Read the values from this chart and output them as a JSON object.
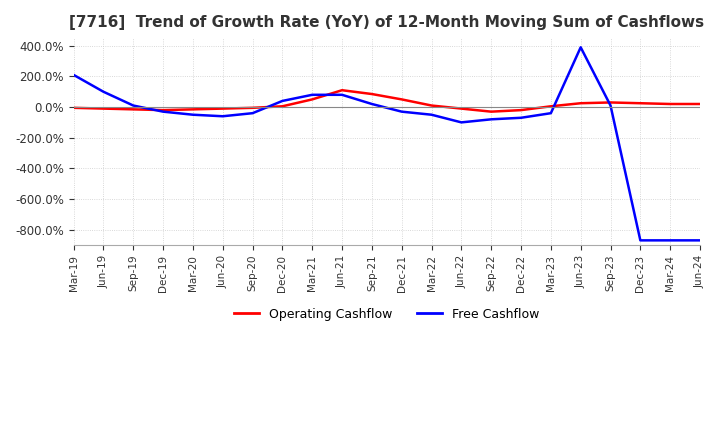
{
  "title": "[7716]  Trend of Growth Rate (YoY) of 12-Month Moving Sum of Cashflows",
  "title_fontsize": 11,
  "ylim": [
    -900,
    450
  ],
  "yticks": [
    -800,
    -600,
    -400,
    -200,
    0,
    200,
    400
  ],
  "ytick_labels": [
    "-800.0%",
    "-600.0%",
    "-400.0%",
    "-200.0%",
    "0.0%",
    "200.0%",
    "400.0%"
  ],
  "legend_labels": [
    "Operating Cashflow",
    "Free Cashflow"
  ],
  "legend_colors": [
    "red",
    "blue"
  ],
  "x_labels": [
    "Mar-19",
    "Jun-19",
    "Sep-19",
    "Dec-19",
    "Mar-20",
    "Jun-20",
    "Sep-20",
    "Dec-20",
    "Mar-21",
    "Jun-21",
    "Sep-21",
    "Dec-21",
    "Mar-22",
    "Jun-22",
    "Sep-22",
    "Dec-22",
    "Mar-23",
    "Jun-23",
    "Sep-23",
    "Dec-23",
    "Mar-24",
    "Jun-24"
  ],
  "operating_cashflow": [
    -5,
    -10,
    -15,
    -20,
    -15,
    -10,
    -5,
    5,
    50,
    110,
    85,
    50,
    10,
    -10,
    -30,
    -20,
    5,
    25,
    30,
    25,
    20,
    20
  ],
  "free_cashflow": [
    210,
    100,
    10,
    -30,
    -50,
    -60,
    -40,
    40,
    80,
    80,
    20,
    -30,
    -50,
    -100,
    -80,
    -70,
    -40,
    390,
    10,
    -870,
    -870,
    -870
  ],
  "background_color": "#ffffff",
  "grid_color": "#cccccc",
  "line_width": 1.8
}
